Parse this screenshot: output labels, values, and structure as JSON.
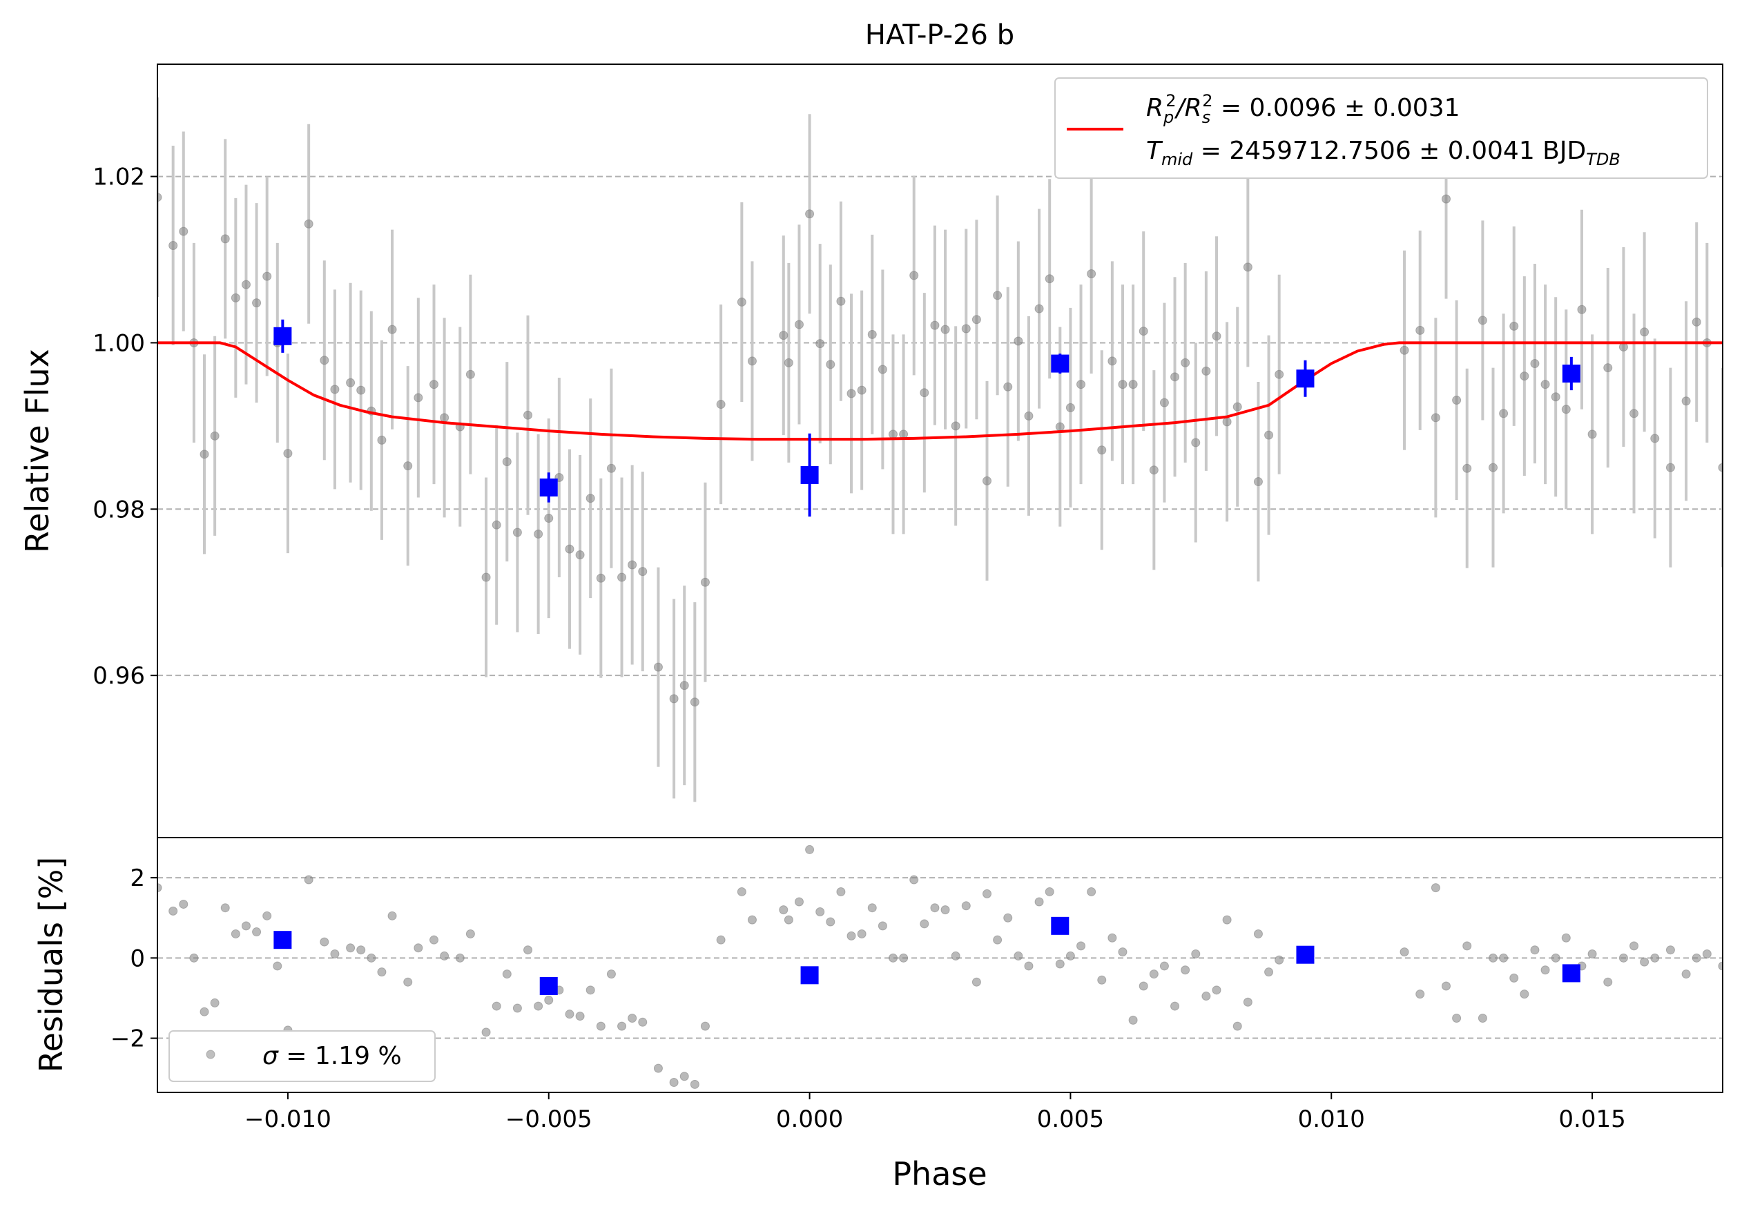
{
  "chart_data": [
    {
      "type": "scatter",
      "title": "HAT-P-26 b",
      "xlabel": "",
      "ylabel": "Relative Flux",
      "xlim": [
        -0.0125,
        0.0175
      ],
      "ylim": [
        0.9405,
        1.0335
      ],
      "yticks": [
        0.96,
        0.98,
        1.0,
        1.02
      ],
      "ytick_labels": [
        "0.96",
        "0.98",
        "1.00",
        "1.02"
      ],
      "grid": "horizontal dashed",
      "legend_placement": "upper right",
      "legend_label_1": "R_p^2/R_s^2 = 0.0096 ± 0.0031",
      "legend_label_1_main": "R",
      "legend_label_1_sub_a": "p",
      "legend_label_1_sup_a": "2",
      "legend_label_1_slash": "/R",
      "legend_label_1_sub_b": "s",
      "legend_label_1_sup_b": "2",
      "legend_label_1_value": " = 0.0096 ± 0.0031",
      "legend_label_2_main": "T",
      "legend_label_2_sub": "mid",
      "legend_label_2_value": " = 2459712.7506 ± 0.0041 BJD",
      "legend_label_2_sub_unit": "TDB",
      "series": [
        {
          "name": "unbinned",
          "color": "#808080",
          "x": [
            -0.0125,
            -0.0122,
            -0.012,
            -0.0118,
            -0.0116,
            -0.0114,
            -0.0112,
            -0.011,
            -0.0108,
            -0.0106,
            -0.0104,
            -0.0102,
            -0.01,
            -0.0096,
            -0.0093,
            -0.0091,
            -0.0088,
            -0.0086,
            -0.0084,
            -0.0082,
            -0.008,
            -0.0077,
            -0.0075,
            -0.0072,
            -0.007,
            -0.0067,
            -0.0065,
            -0.0062,
            -0.006,
            -0.0058,
            -0.0056,
            -0.0054,
            -0.0052,
            -0.005,
            -0.0048,
            -0.0046,
            -0.0044,
            -0.0042,
            -0.004,
            -0.0038,
            -0.0036,
            -0.0034,
            -0.0032,
            -0.0029,
            -0.0026,
            -0.0024,
            -0.0022,
            -0.002,
            -0.0017,
            -0.0013,
            -0.0011,
            -0.0005,
            -0.0004,
            -0.0002,
            0.0,
            0.0002,
            0.0004,
            0.0006,
            0.0008,
            0.001,
            0.0012,
            0.0014,
            0.0016,
            0.0018,
            0.002,
            0.0022,
            0.0024,
            0.0026,
            0.0028,
            0.003,
            0.0032,
            0.0034,
            0.0036,
            0.0038,
            0.004,
            0.0042,
            0.0044,
            0.0046,
            0.0048,
            0.005,
            0.0052,
            0.0054,
            0.0056,
            0.0058,
            0.006,
            0.0062,
            0.0064,
            0.0066,
            0.0068,
            0.007,
            0.0072,
            0.0074,
            0.0076,
            0.0078,
            0.008,
            0.0082,
            0.0084,
            0.0086,
            0.0088,
            0.009,
            0.0114,
            0.0117,
            0.012,
            0.0122,
            0.0124,
            0.0126,
            0.0129,
            0.0131,
            0.0133,
            0.0135,
            0.0137,
            0.0139,
            0.0141,
            0.0143,
            0.0145,
            0.0148,
            0.015,
            0.0153,
            0.0156,
            0.0158,
            0.016,
            0.0162,
            0.0165,
            0.0168,
            0.017,
            0.0172,
            0.0175
          ],
          "y": [
            1.0175,
            1.0117,
            1.0134,
            1.0,
            0.9866,
            0.9888,
            1.0125,
            1.0054,
            1.007,
            1.0048,
            1.008,
            1.0,
            0.9867,
            1.0143,
            0.9979,
            0.9944,
            0.9952,
            0.9943,
            0.9918,
            0.9883,
            1.0016,
            0.9852,
            0.9934,
            0.995,
            0.991,
            0.9899,
            0.9962,
            0.9718,
            0.9781,
            0.9857,
            0.9772,
            0.9913,
            0.977,
            0.9789,
            0.9838,
            0.9752,
            0.9745,
            0.9813,
            0.9717,
            0.9849,
            0.9718,
            0.9733,
            0.9725,
            0.961,
            0.9572,
            0.9588,
            0.9568,
            0.9712,
            0.9926,
            1.0049,
            0.9978,
            1.0009,
            0.9976,
            1.0022,
            1.0155,
            0.9999,
            0.9974,
            1.005,
            0.9939,
            0.9943,
            1.001,
            0.9968,
            0.989,
            0.989,
            1.0081,
            0.994,
            1.0021,
            1.0016,
            0.99,
            1.0017,
            1.0028,
            0.9834,
            1.0057,
            0.9947,
            1.0002,
            0.9912,
            1.0041,
            1.0077,
            0.9899,
            0.9922,
            0.995,
            1.0083,
            0.9871,
            0.9978,
            0.995,
            0.995,
            1.0014,
            0.9847,
            0.9928,
            0.9959,
            0.9976,
            0.988,
            0.9966,
            1.0008,
            0.9905,
            0.9923,
            1.0091,
            0.9833,
            0.9889,
            0.9962,
            0.9991,
            1.0015,
            0.991,
            1.0173,
            0.9931,
            0.9849,
            1.0027,
            0.985,
            0.9915,
            1.002,
            0.996,
            0.9975,
            0.995,
            0.9935,
            0.992,
            1.004,
            0.989,
            0.997,
            0.9995,
            0.9915,
            1.0013,
            0.9885,
            0.985,
            0.993,
            1.0025,
            1.0,
            0.985
          ],
          "y_err": 0.012
        },
        {
          "name": "binned",
          "color": "#0000ff",
          "x": [
            -0.0101,
            -0.005,
            0.0,
            0.0048,
            0.0095,
            0.0146
          ],
          "y": [
            1.0008,
            0.9826,
            0.9841,
            0.9975,
            0.9957,
            0.9963
          ],
          "y_err": [
            0.002,
            0.0018,
            0.005,
            0.0012,
            0.0022,
            0.002
          ]
        },
        {
          "name": "model",
          "color": "#ff0000",
          "x": [
            -0.0125,
            -0.0113,
            -0.011,
            -0.0105,
            -0.01,
            -0.0095,
            -0.009,
            -0.0085,
            -0.008,
            -0.007,
            -0.006,
            -0.005,
            -0.004,
            -0.003,
            -0.002,
            -0.001,
            0.0,
            0.001,
            0.002,
            0.003,
            0.004,
            0.005,
            0.006,
            0.007,
            0.008,
            0.0088,
            0.0095,
            0.01,
            0.0105,
            0.011,
            0.0113,
            0.0175
          ],
          "y": [
            1.0,
            1.0,
            0.9995,
            0.9975,
            0.9955,
            0.9937,
            0.9925,
            0.9917,
            0.9911,
            0.9904,
            0.9899,
            0.9894,
            0.989,
            0.9887,
            0.9885,
            0.9884,
            0.9884,
            0.9884,
            0.9885,
            0.9887,
            0.989,
            0.9894,
            0.9899,
            0.9904,
            0.9911,
            0.9925,
            0.9955,
            0.9975,
            0.999,
            0.9998,
            1.0,
            1.0
          ]
        }
      ]
    },
    {
      "type": "scatter",
      "title": "",
      "xlabel": "Phase",
      "ylabel": "Residuals [%]",
      "xlim": [
        -0.0125,
        0.0175
      ],
      "ylim": [
        -3.35,
        3.0
      ],
      "yticks": [
        -2,
        0,
        2
      ],
      "ytick_labels": [
        "−2",
        "0",
        "2"
      ],
      "xticks": [
        -0.01,
        -0.005,
        0.0,
        0.005,
        0.01,
        0.015
      ],
      "xtick_labels": [
        "−0.010",
        "−0.005",
        "0.000",
        "0.005",
        "0.010",
        "0.015"
      ],
      "grid": "horizontal dashed",
      "legend_placement": "lower left",
      "legend_label_main": "σ",
      "legend_label_value": " = 1.19 %",
      "series": [
        {
          "name": "residuals",
          "color": "#808080",
          "x": [
            -0.0125,
            -0.0122,
            -0.012,
            -0.0118,
            -0.0116,
            -0.0114,
            -0.0112,
            -0.011,
            -0.0108,
            -0.0106,
            -0.0104,
            -0.0102,
            -0.01,
            -0.0096,
            -0.0093,
            -0.0091,
            -0.0088,
            -0.0086,
            -0.0084,
            -0.0082,
            -0.008,
            -0.0077,
            -0.0075,
            -0.0072,
            -0.007,
            -0.0067,
            -0.0065,
            -0.0062,
            -0.006,
            -0.0058,
            -0.0056,
            -0.0054,
            -0.0052,
            -0.005,
            -0.0048,
            -0.0046,
            -0.0044,
            -0.0042,
            -0.004,
            -0.0038,
            -0.0036,
            -0.0034,
            -0.0032,
            -0.0029,
            -0.0026,
            -0.0024,
            -0.0022,
            -0.002,
            -0.0017,
            -0.0013,
            -0.0011,
            -0.0005,
            -0.0004,
            -0.0002,
            0.0,
            0.0002,
            0.0004,
            0.0006,
            0.0008,
            0.001,
            0.0012,
            0.0014,
            0.0016,
            0.0018,
            0.002,
            0.0022,
            0.0024,
            0.0026,
            0.0028,
            0.003,
            0.0032,
            0.0034,
            0.0036,
            0.0038,
            0.004,
            0.0042,
            0.0044,
            0.0046,
            0.0048,
            0.005,
            0.0052,
            0.0054,
            0.0056,
            0.0058,
            0.006,
            0.0062,
            0.0064,
            0.0066,
            0.0068,
            0.007,
            0.0072,
            0.0074,
            0.0076,
            0.0078,
            0.008,
            0.0082,
            0.0084,
            0.0086,
            0.0088,
            0.009,
            0.0114,
            0.0117,
            0.012,
            0.0122,
            0.0124,
            0.0126,
            0.0129,
            0.0131,
            0.0133,
            0.0135,
            0.0137,
            0.0139,
            0.0141,
            0.0143,
            0.0145,
            0.0148,
            0.015,
            0.0153,
            0.0156,
            0.0158,
            0.016,
            0.0162,
            0.0165,
            0.0168,
            0.017,
            0.0172,
            0.0175
          ],
          "y": [
            1.75,
            1.17,
            1.34,
            0.0,
            -1.34,
            -1.12,
            1.25,
            0.6,
            0.8,
            0.65,
            1.05,
            -0.2,
            -1.8,
            1.95,
            0.4,
            0.1,
            0.25,
            0.2,
            0.0,
            -0.35,
            1.05,
            -0.6,
            0.25,
            0.45,
            0.05,
            0.0,
            0.6,
            -1.85,
            -1.2,
            -0.4,
            -1.25,
            0.2,
            -1.2,
            -1.05,
            -0.8,
            -1.4,
            -1.45,
            -0.8,
            -1.7,
            -0.4,
            -1.7,
            -1.5,
            -1.6,
            -2.75,
            -3.1,
            -2.95,
            -3.15,
            -1.7,
            0.45,
            1.65,
            0.95,
            1.2,
            0.95,
            1.4,
            2.7,
            1.15,
            0.9,
            1.65,
            0.55,
            0.6,
            1.25,
            0.8,
            0.0,
            0.0,
            1.95,
            0.85,
            1.25,
            1.2,
            0.05,
            1.3,
            -0.6,
            1.6,
            0.45,
            1.0,
            0.05,
            -0.2,
            1.4,
            1.65,
            -0.15,
            0.05,
            0.3,
            1.65,
            -0.55,
            0.5,
            0.15,
            -1.55,
            -0.7,
            -0.4,
            -0.2,
            -1.2,
            -0.3,
            0.1,
            -0.95,
            -0.8,
            0.95,
            -1.7,
            -1.1,
            0.6,
            -0.35,
            -0.05,
            0.15,
            -0.9,
            1.75,
            -0.7,
            -1.5,
            0.3,
            -1.5,
            0.0,
            0.0,
            -0.5,
            -0.9,
            0.2,
            -0.3,
            0.0,
            0.5,
            -0.2,
            0.1,
            -0.6,
            0.0,
            0.3,
            -0.1,
            0.0,
            0.2,
            -0.4,
            0.0,
            0.1,
            -0.2
          ]
        },
        {
          "name": "binned residuals",
          "color": "#0000ff",
          "x": [
            -0.0101,
            -0.005,
            0.0,
            0.0048,
            0.0095,
            0.0146
          ],
          "y": [
            0.45,
            -0.7,
            -0.43,
            0.8,
            0.08,
            -0.38
          ]
        }
      ]
    }
  ]
}
